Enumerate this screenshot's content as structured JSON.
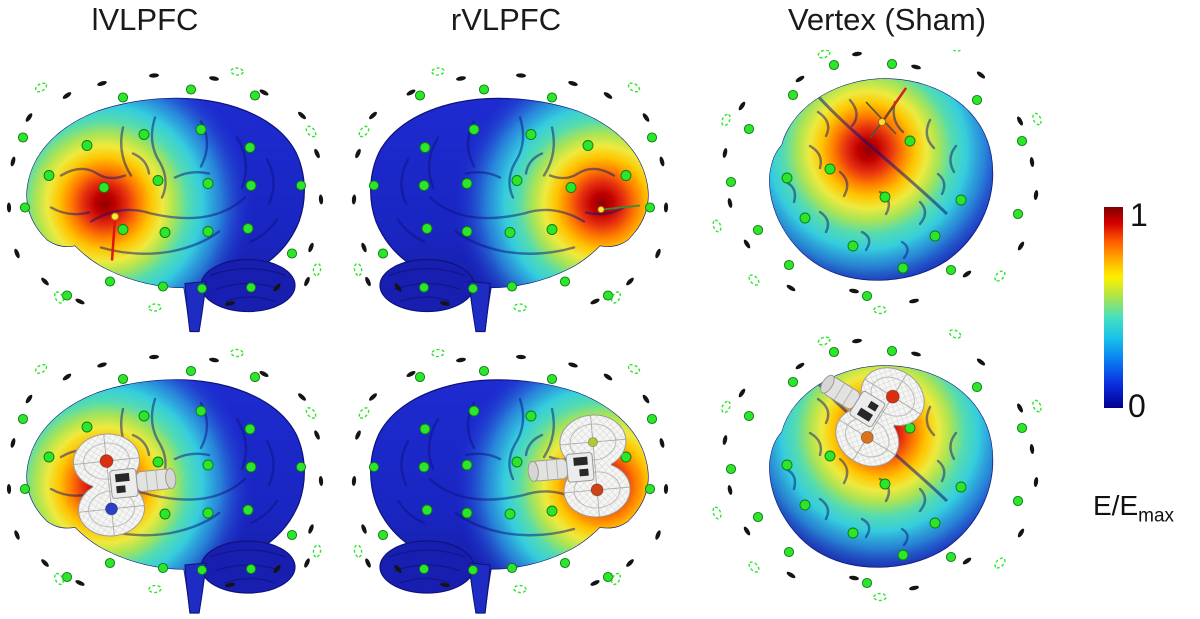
{
  "figure": {
    "columns": [
      {
        "label": "lVLPFC",
        "view": "left lateral brain"
      },
      {
        "label": "rVLPFC",
        "view": "right lateral brain"
      },
      {
        "label": "Vertex (Sham)",
        "view": "superior (top) brain"
      }
    ],
    "rows": [
      {
        "name": "e-field-map-with-target-marker"
      },
      {
        "name": "e-field-map-with-tms-coil"
      }
    ],
    "colorbar": {
      "max_label": "1",
      "min_label": "0",
      "quantity": "E/E",
      "quantity_sub": "max",
      "colormap": "jet",
      "range": [
        0,
        1
      ]
    },
    "panels": [
      {
        "id": "p11",
        "column": 0,
        "row": 0,
        "view": "lateralL",
        "coil": null,
        "marker": "target-line-red",
        "alt": "Left lateral brain, E-field hotspot over left VLPFC, EEG electrodes as green dots"
      },
      {
        "id": "p21",
        "column": 1,
        "row": 0,
        "view": "lateralR",
        "coil": null,
        "marker": "target-line-green",
        "alt": "Right lateral brain, E-field hotspot over right VLPFC, EEG electrodes as green dots"
      },
      {
        "id": "p31",
        "column": 2,
        "row": 0,
        "view": "top",
        "coil": null,
        "marker": "target-cross",
        "alt": "Top view brain, E-field hotspot at vertex, EEG electrodes as green dots"
      },
      {
        "id": "p12",
        "column": 0,
        "row": 1,
        "view": "lateralL",
        "coil": "handle-right",
        "marker": null,
        "alt": "Left lateral brain with figure-8 TMS coil over left VLPFC"
      },
      {
        "id": "p22",
        "column": 1,
        "row": 1,
        "view": "lateralR",
        "coil": "handle-left",
        "marker": null,
        "alt": "Right lateral brain with figure-8 TMS coil over right VLPFC"
      },
      {
        "id": "p32",
        "column": 2,
        "row": 1,
        "view": "top",
        "coil": "vertex",
        "marker": null,
        "alt": "Top view brain with figure-8 TMS coil over vertex"
      }
    ],
    "palette": {
      "background": "#ffffff",
      "title_color": "#1a1a1a",
      "electrode_green": "#2ce62c",
      "electrode_ring": "#0f7a0f",
      "dash_black": "#141414",
      "brain_blue": "#1d2bd0",
      "brain_blue_dark": "#141c9c",
      "cerebellum_blue": "#181fb0",
      "sulci_blue": "#0c1280",
      "hotspot_core": "#8f0000",
      "coil_body": "#f5f5f4",
      "coil_dot_red": "#d83010",
      "coil_dot_blue": "#2a40c8",
      "coil_dot_orange": "#cc4416",
      "coil_dot_orange2": "#d9731c",
      "coil_dot_yellow": "#b4c832",
      "marker_red": "#e01414",
      "marker_green": "#3a8a3a",
      "marker_dot_yellow": "#ffe63c",
      "jet_stops": [
        [
          "0%",
          "#7f0000"
        ],
        [
          "8%",
          "#d40000"
        ],
        [
          "17%",
          "#ff5a00"
        ],
        [
          "27%",
          "#ffb400"
        ],
        [
          "35%",
          "#fdf000"
        ],
        [
          "45%",
          "#a8e44e"
        ],
        [
          "55%",
          "#46dfc0"
        ],
        [
          "65%",
          "#19c3ea"
        ],
        [
          "76%",
          "#0b7ef0"
        ],
        [
          "88%",
          "#0b2ee0"
        ],
        [
          "100%",
          "#000090"
        ]
      ]
    }
  }
}
